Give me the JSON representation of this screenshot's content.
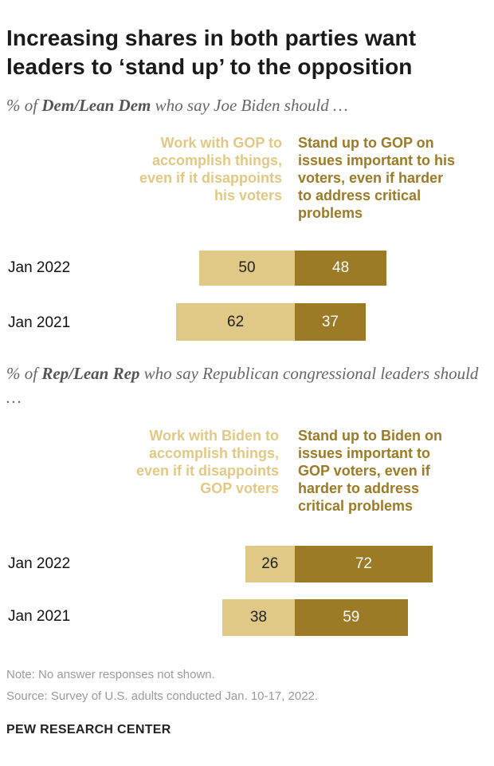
{
  "title": "Increasing shares in both parties want leaders to ‘stand up’ to the opposition",
  "chart_data": [
    {
      "type": "bar",
      "subtitle_pre": "% of ",
      "subtitle_bold": "Dem/Lean  Dem",
      "subtitle_post": " who say Joe Biden should …",
      "legend_left": [
        "Work with GOP to",
        "accomplish things,",
        "even if it disappoints",
        "his voters"
      ],
      "legend_right": [
        "Stand up to GOP on",
        "issues important to his",
        "voters, even if harder",
        "to address critical",
        "problems"
      ],
      "categories": [
        "Jan 2022",
        "Jan 2021"
      ],
      "series": [
        {
          "name": "Work with GOP to accomplish things, even if it disappoints his voters",
          "values": [
            50,
            62
          ]
        },
        {
          "name": "Stand up to GOP on issues important to his voters, even if harder to address critical problems",
          "values": [
            48,
            37
          ]
        }
      ]
    },
    {
      "type": "bar",
      "subtitle_pre": "% of ",
      "subtitle_bold": "Rep/Lean Rep",
      "subtitle_post": " who say Republican congressional leaders should …",
      "legend_left": [
        "Work with Biden to",
        "accomplish things,",
        "even if it disappoints",
        "GOP voters"
      ],
      "legend_right": [
        "Stand up to Biden on",
        "issues important to",
        "GOP voters, even if",
        "harder to address",
        "critical problems"
      ],
      "categories": [
        "Jan 2022",
        "Jan 2021"
      ],
      "series": [
        {
          "name": "Work with Biden to accomplish things, even if it disappoints GOP voters",
          "values": [
            26,
            38
          ]
        },
        {
          "name": "Stand up to Biden on issues important to GOP voters, even if harder to address critical problems",
          "values": [
            72,
            59
          ]
        }
      ]
    }
  ],
  "note": "Note: No answer responses not shown.",
  "source": "Source: Survey of U.S. adults conducted Jan. 10-17, 2022.",
  "brand": "PEW RESEARCH CENTER",
  "colors": {
    "left": "#e0c886",
    "right": "#9c7a26",
    "left_text": "#e1c885",
    "right_text": "#9c7a26"
  }
}
